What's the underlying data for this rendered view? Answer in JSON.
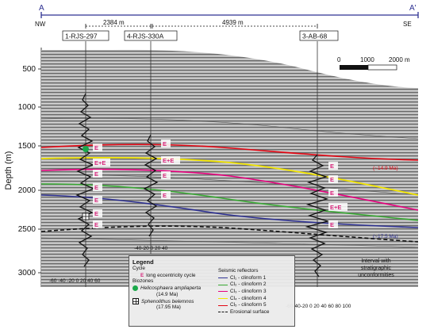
{
  "section": {
    "start_label": "A",
    "end_label": "A'",
    "start_dir": "NW",
    "end_dir": "SE"
  },
  "wells": [
    {
      "name": "1-RJS-297"
    },
    {
      "name": "4-RJS-330A"
    },
    {
      "name": "3-AB-68"
    }
  ],
  "distances": [
    "2384 m",
    "4939 m"
  ],
  "scale_bar": {
    "ticks": [
      "0",
      "1000",
      "2000 m"
    ]
  },
  "depth_axis": {
    "label": "Depth (m)",
    "ticks": [
      "500",
      "1000",
      "1500",
      "2000",
      "2500",
      "3000"
    ]
  },
  "log_axes": {
    "well1": "-60 -40 -20  0  20 40 60",
    "well2": "-40-20  0  20 40",
    "well3": "-60-40-20  0  20  40 60 80 100"
  },
  "ecycle_labels": {
    "well1": [
      "E",
      "E+E",
      "E",
      "E",
      "E",
      "E",
      "E"
    ],
    "well2": [
      "E",
      "E+E",
      "E",
      "E"
    ],
    "well3": [
      "E",
      "E",
      "E",
      "E+E",
      "E"
    ]
  },
  "age_labels": {
    "red": "(~14.9 Ma)",
    "blue": "(~17.5 Ma)"
  },
  "annotation": "Interval with\nstratigraphic\nunconformities",
  "legend": {
    "title": "Legend",
    "cycle_heading": "Cycle",
    "cycle_item_symbol": "E",
    "cycle_item": "long eccentricity cycle",
    "biozones_heading": "Biozones",
    "biozone1_name": "Helicosphaera ampliaperta",
    "biozone1_age": "(14.9 Ma)",
    "biozone2_name": "Sphenolithus belemnos",
    "biozone2_age": "(17.95 Ma)",
    "reflectors_heading": "Seismic reflectors",
    "reflectors": [
      {
        "label": "Cl₁ - clinoform 1",
        "color": "#2e3192"
      },
      {
        "label": "Cl₂ - clinoform 2",
        "color": "#3aaa35"
      },
      {
        "label": "Cl₃ - clinoform 3",
        "color": "#e6007e"
      },
      {
        "label": "Cl₄ - clinoform 4",
        "color": "#f2e500"
      },
      {
        "label": "Cl₅ - clinoform 5",
        "color": "#e30613"
      }
    ],
    "erosional": "Erosional surface"
  },
  "colors": {
    "section_line": "#2e3192",
    "ecycle": "#d6257a",
    "biozone_marker": "#1aa84a"
  }
}
